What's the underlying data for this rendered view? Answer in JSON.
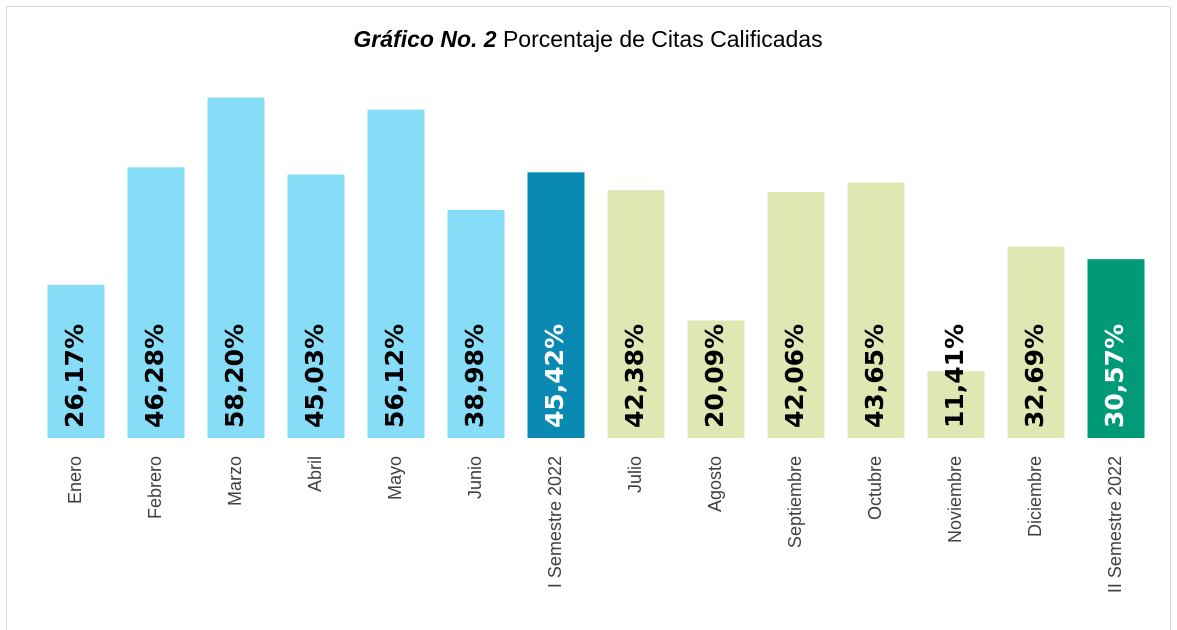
{
  "chart_data": {
    "type": "bar",
    "title": [
      "Gráfico No. 2",
      "Porcentaje de Citas Calificadas"
    ],
    "categories": [
      "Enero",
      "Febrero",
      "Marzo",
      "Abril",
      "Mayo",
      "Junio",
      "I Semestre 2022",
      "Julio",
      "Agosto",
      "Septiembre",
      "Octubre",
      "Noviembre",
      "Diciembre",
      "II Semestre 2022"
    ],
    "values": [
      26.17,
      46.28,
      58.2,
      45.03,
      56.12,
      38.98,
      45.42,
      42.38,
      20.09,
      42.06,
      43.65,
      11.41,
      32.69,
      30.57
    ],
    "value_labels": [
      "26,17%",
      "46,28%",
      "58,20%",
      "45,03%",
      "56,12%",
      "38,98%",
      "45,42%",
      "42,38%",
      "20,09%",
      "42,06%",
      "43,65%",
      "11,41%",
      "32,69%",
      "30,57%"
    ],
    "colors": [
      "#87ddf7",
      "#87ddf7",
      "#87ddf7",
      "#87ddf7",
      "#87ddf7",
      "#87ddf7",
      "#0a89b2",
      "#dfe8b3",
      "#dfe8b3",
      "#dfe8b3",
      "#dfe8b3",
      "#dfe8b3",
      "#dfe8b3",
      "#019a78"
    ],
    "value_label_colors": [
      "#000000",
      "#000000",
      "#000000",
      "#000000",
      "#000000",
      "#000000",
      "#ffffff",
      "#000000",
      "#000000",
      "#000000",
      "#000000",
      "#000000",
      "#000000",
      "#ffffff"
    ],
    "ylim": [
      0,
      60
    ]
  }
}
